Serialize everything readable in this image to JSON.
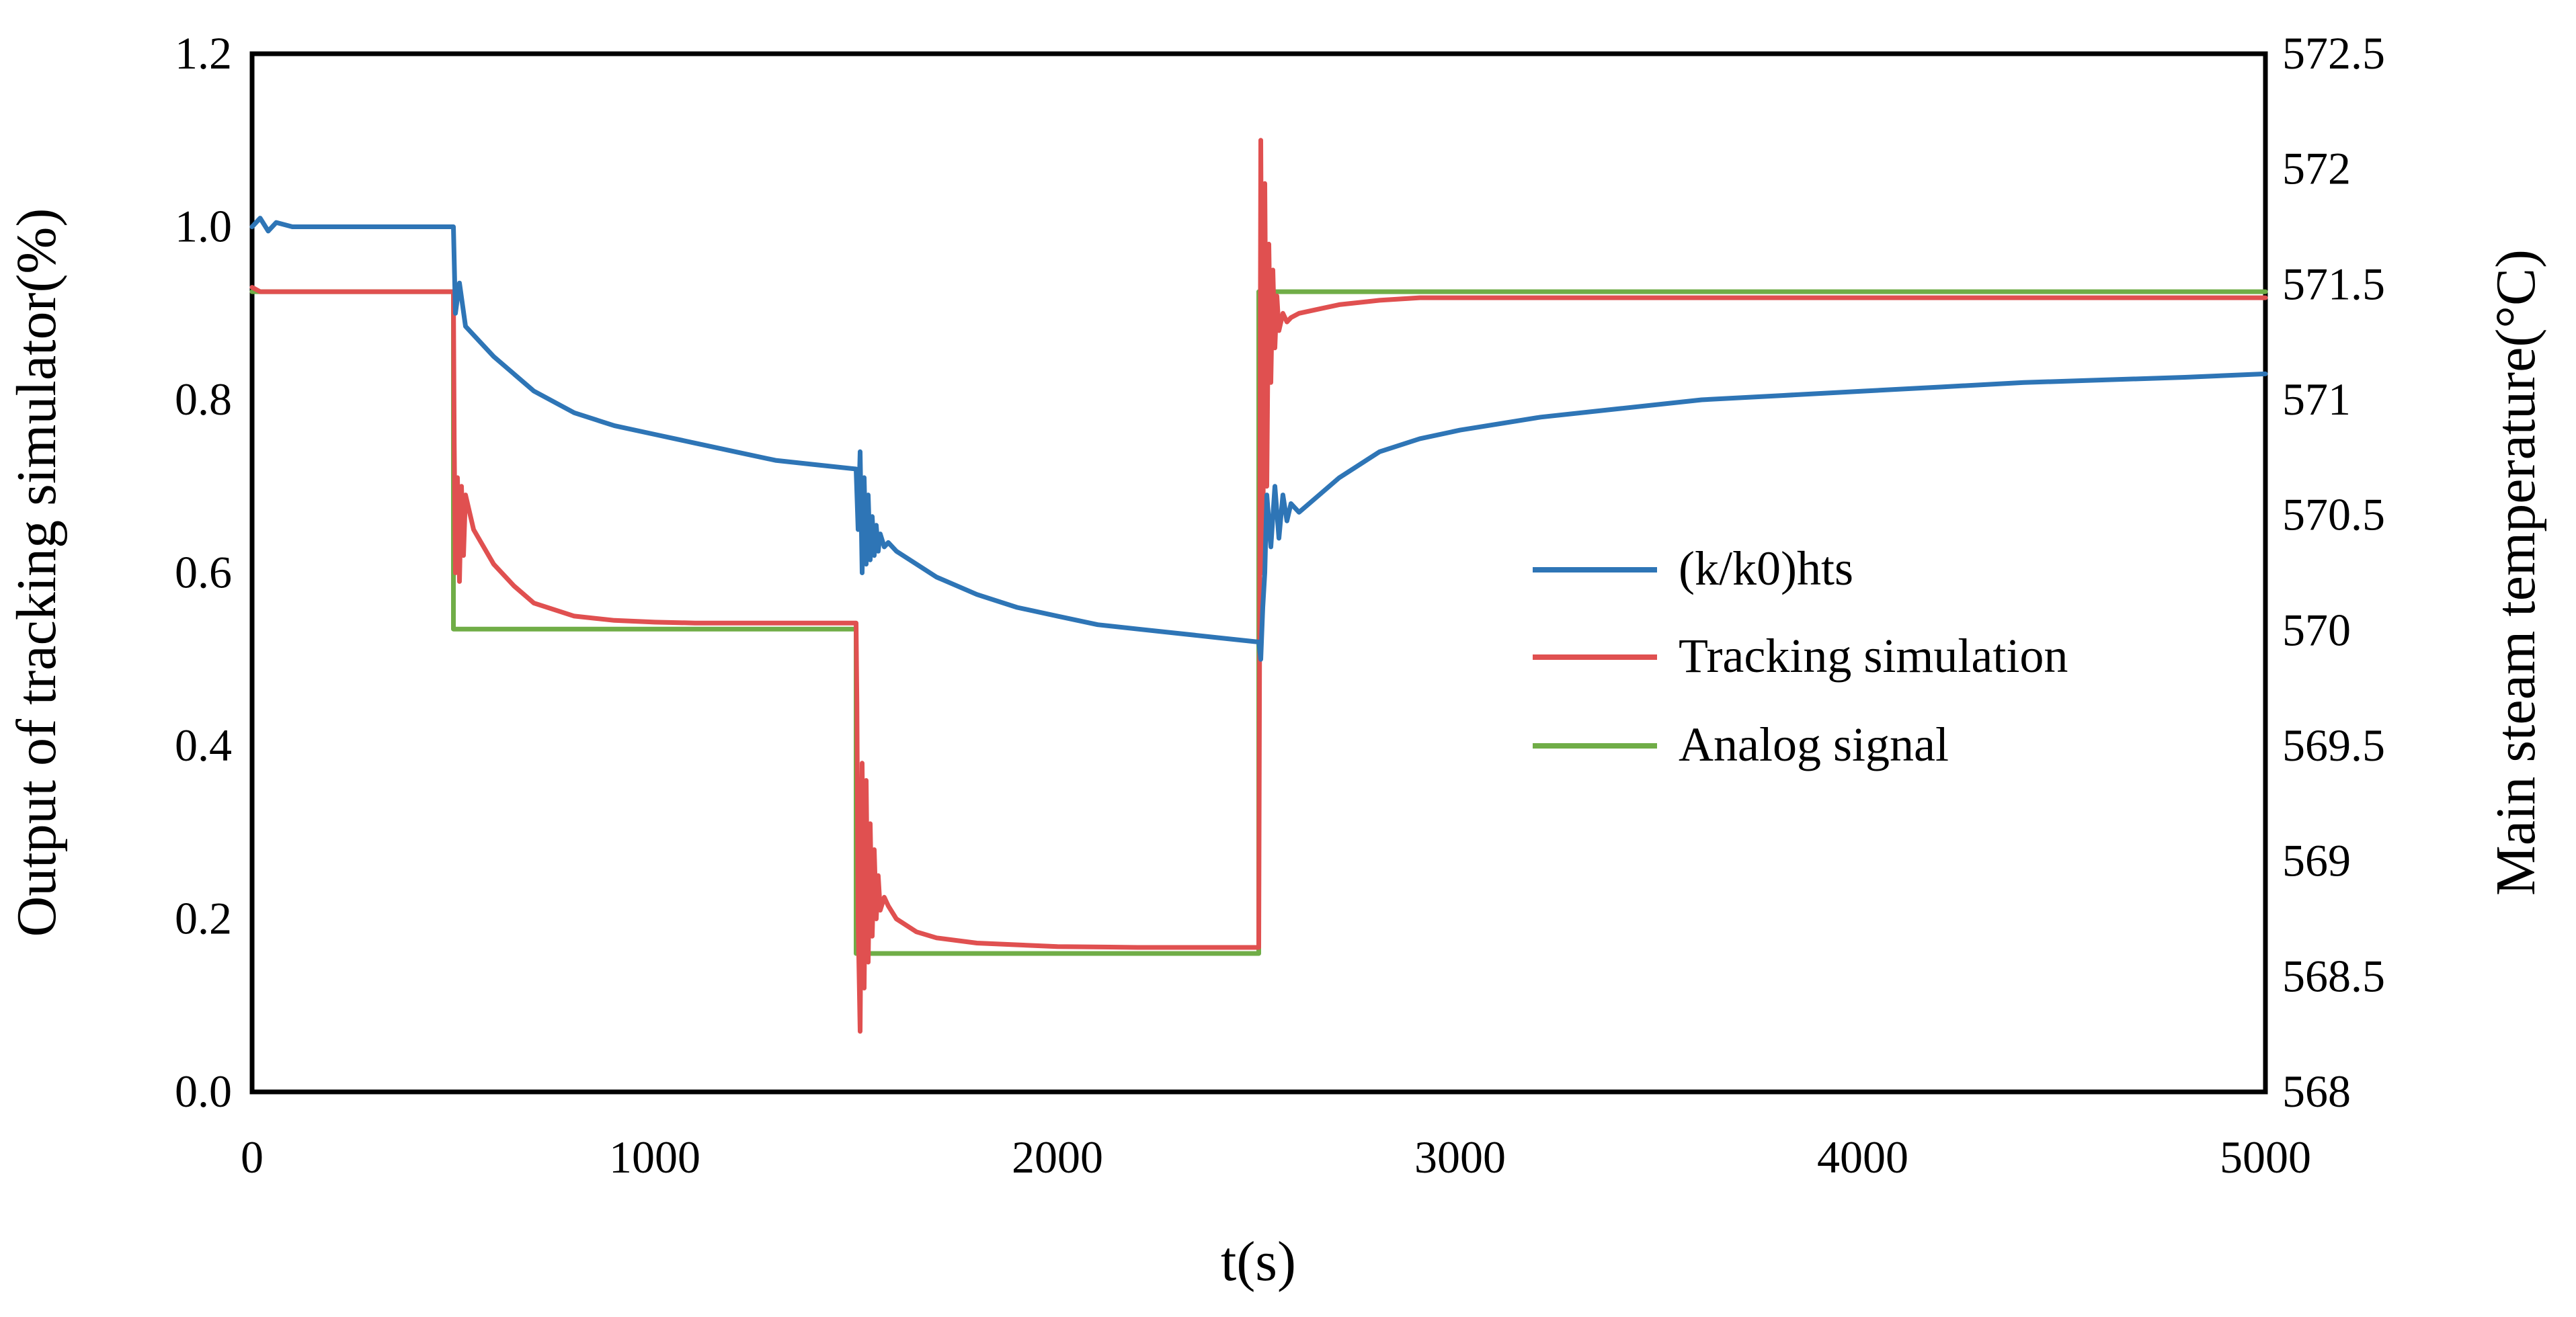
{
  "chart_data": {
    "type": "line",
    "title": "",
    "xlabel": "t(s)",
    "ylabel": "Output of  tracking simulator(%)",
    "y2label": "Main steam temperature(°C)",
    "xlim": [
      0,
      5000
    ],
    "ylim": [
      0,
      1.2
    ],
    "y2lim": [
      568,
      572.5
    ],
    "x_ticks": [
      "0",
      "1000",
      "2000",
      "3000",
      "4000",
      "5000"
    ],
    "y_ticks": [
      "0.0",
      "0.2",
      "0.4",
      "0.6",
      "0.8",
      "1.0",
      "1.2"
    ],
    "y2_ticks": [
      "568",
      "568.5",
      "569",
      "569.5",
      "570",
      "570.5",
      "571",
      "571.5",
      "572",
      "572.5"
    ],
    "grid": false,
    "legend_position": "center-right",
    "series": [
      {
        "name": "(k/k0)hts",
        "color": "#2e75b6",
        "axis": "left",
        "x": [
          0,
          20,
          40,
          60,
          100,
          200,
          300,
          400,
          500,
          505,
          515,
          530,
          560,
          600,
          700,
          800,
          900,
          1000,
          1100,
          1200,
          1300,
          1400,
          1500,
          1505,
          1510,
          1515,
          1520,
          1525,
          1530,
          1535,
          1540,
          1545,
          1550,
          1555,
          1560,
          1570,
          1580,
          1600,
          1650,
          1700,
          1800,
          1900,
          2000,
          2100,
          2200,
          2300,
          2400,
          2500,
          2505,
          2510,
          2515,
          2520,
          2530,
          2540,
          2550,
          2560,
          2570,
          2580,
          2600,
          2650,
          2700,
          2800,
          2900,
          3000,
          3200,
          3400,
          3600,
          3800,
          4000,
          4200,
          4400,
          4600,
          4800,
          5000
        ],
        "y": [
          1.0,
          1.01,
          0.995,
          1.005,
          1.0,
          1.0,
          1.0,
          1.0,
          1.0,
          0.9,
          0.935,
          0.885,
          0.87,
          0.85,
          0.81,
          0.785,
          0.77,
          0.76,
          0.75,
          0.74,
          0.73,
          0.725,
          0.72,
          0.65,
          0.74,
          0.6,
          0.71,
          0.61,
          0.69,
          0.615,
          0.665,
          0.62,
          0.655,
          0.625,
          0.645,
          0.63,
          0.635,
          0.625,
          0.61,
          0.595,
          0.575,
          0.56,
          0.55,
          0.54,
          0.535,
          0.53,
          0.525,
          0.52,
          0.5,
          0.56,
          0.6,
          0.69,
          0.63,
          0.7,
          0.64,
          0.69,
          0.66,
          0.68,
          0.67,
          0.69,
          0.71,
          0.74,
          0.755,
          0.765,
          0.78,
          0.79,
          0.8,
          0.805,
          0.81,
          0.815,
          0.82,
          0.823,
          0.826,
          0.83
        ]
      },
      {
        "name": "Tracking simulation",
        "color": "#e05050",
        "axis": "left",
        "x": [
          0,
          20,
          100,
          200,
          300,
          400,
          500,
          502,
          505,
          510,
          515,
          520,
          525,
          530,
          540,
          550,
          600,
          650,
          700,
          800,
          900,
          1000,
          1100,
          1200,
          1300,
          1400,
          1500,
          1502,
          1505,
          1510,
          1515,
          1520,
          1525,
          1530,
          1535,
          1540,
          1545,
          1550,
          1555,
          1560,
          1570,
          1580,
          1600,
          1650,
          1700,
          1800,
          1900,
          2000,
          2200,
          2400,
          2500,
          2502,
          2505,
          2510,
          2515,
          2520,
          2525,
          2530,
          2535,
          2540,
          2545,
          2550,
          2560,
          2570,
          2580,
          2600,
          2650,
          2700,
          2800,
          2900,
          3000,
          3200,
          3500,
          4000,
          4500,
          5000
        ],
        "y": [
          0.93,
          0.925,
          0.925,
          0.925,
          0.925,
          0.925,
          0.925,
          0.75,
          0.6,
          0.71,
          0.59,
          0.7,
          0.62,
          0.69,
          0.67,
          0.65,
          0.61,
          0.585,
          0.565,
          0.55,
          0.545,
          0.543,
          0.542,
          0.542,
          0.542,
          0.542,
          0.542,
          0.45,
          0.2,
          0.07,
          0.38,
          0.12,
          0.36,
          0.15,
          0.31,
          0.18,
          0.28,
          0.2,
          0.25,
          0.21,
          0.225,
          0.215,
          0.2,
          0.185,
          0.178,
          0.172,
          0.17,
          0.168,
          0.167,
          0.167,
          0.167,
          0.5,
          1.1,
          0.6,
          1.05,
          0.7,
          0.98,
          0.82,
          0.95,
          0.86,
          0.92,
          0.88,
          0.9,
          0.89,
          0.895,
          0.9,
          0.905,
          0.91,
          0.915,
          0.918,
          0.918,
          0.918,
          0.918,
          0.918,
          0.918,
          0.918
        ]
      },
      {
        "name": "Analog signal",
        "color": "#70ad47",
        "axis": "left",
        "x": [
          0,
          500,
          500,
          1500,
          1500,
          2500,
          2500,
          5000
        ],
        "y": [
          0.925,
          0.925,
          0.535,
          0.535,
          0.16,
          0.16,
          0.925,
          0.925
        ]
      }
    ]
  }
}
